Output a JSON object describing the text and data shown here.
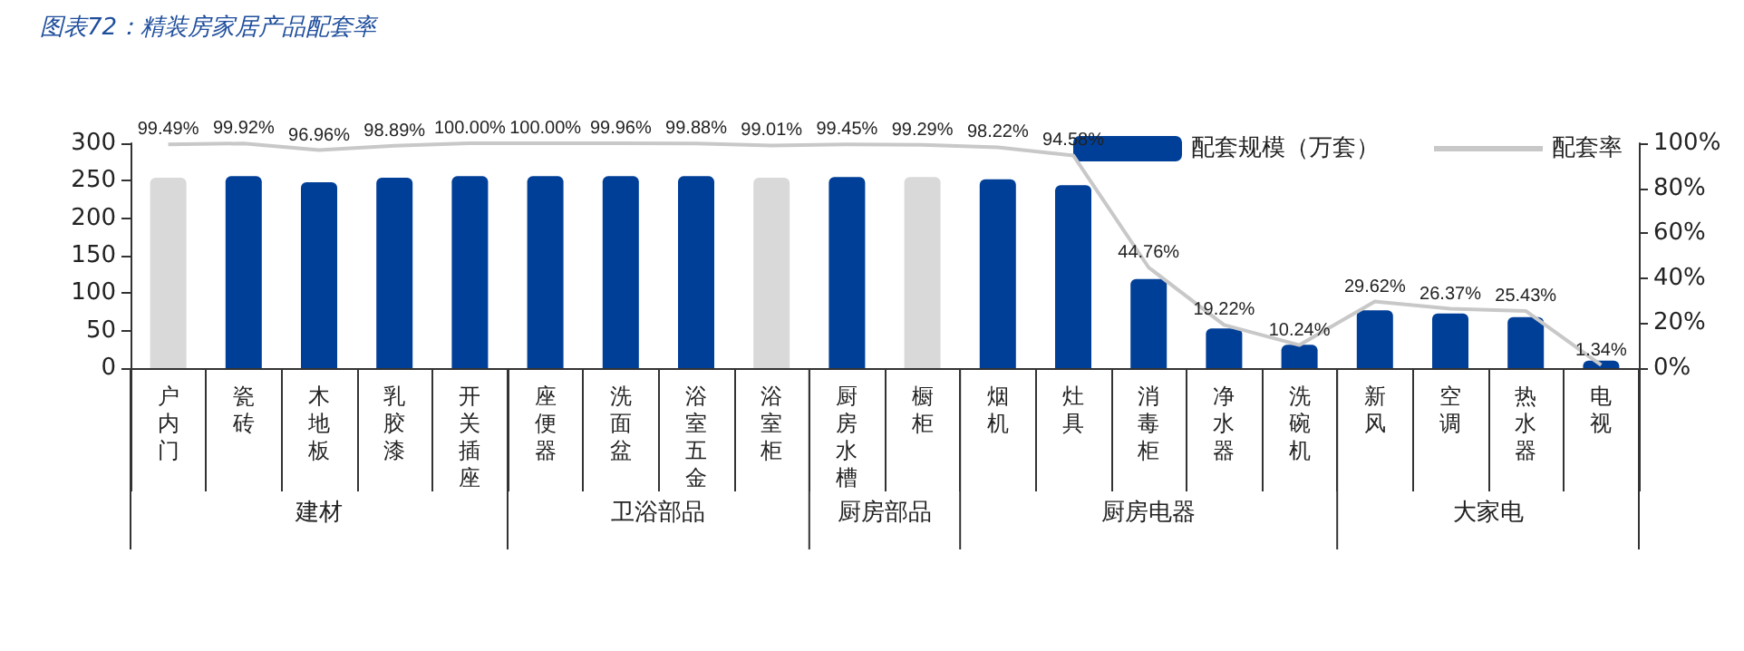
{
  "chart_data": {
    "type": "bar",
    "title": "图表72：精装房家居产品配套率",
    "categories": [
      "户内门",
      "瓷砖",
      "木地板",
      "乳胶漆",
      "开关插座",
      "座便器",
      "洗面盆",
      "浴室五金",
      "浴室柜",
      "厨房水槽",
      "橱柜",
      "烟机",
      "灶具",
      "消毒柜",
      "净水器",
      "洗碗机",
      "新风",
      "空调",
      "热水器",
      "电视"
    ],
    "series": [
      {
        "name": "配套规模（万套）",
        "color": "#003f98",
        "colors": [
          "#d9d9d9",
          "#003f98",
          "#003f98",
          "#003f98",
          "#003f98",
          "#003f98",
          "#003f98",
          "#003f98",
          "#d9d9d9",
          "#003f98",
          "#d9d9d9",
          "#003f98",
          "#003f98",
          "#003f98",
          "#003f98",
          "#003f98",
          "#003f98",
          "#003f98",
          "#003f98",
          "#003f98"
        ],
        "values": [
          254,
          256,
          248,
          254,
          256,
          256,
          256,
          256,
          254,
          255,
          255,
          252,
          244,
          119,
          53,
          31,
          77,
          73,
          68,
          10
        ]
      },
      {
        "name": "配套率",
        "type": "line",
        "axis": "y2",
        "color": "#c8c8c8",
        "values": [
          99.49,
          99.92,
          96.96,
          98.89,
          100,
          100,
          99.96,
          99.88,
          99.01,
          99.45,
          99.29,
          98.22,
          94.58,
          44.76,
          19.22,
          10.24,
          29.62,
          26.37,
          25.43,
          1.34
        ],
        "value_labels": [
          "99.49%",
          "99.92%",
          "96.96%",
          "98.89%",
          "100.00%",
          "100.00%",
          "99.96%",
          "99.88%",
          "99.01%",
          "99.45%",
          "99.29%",
          "98.22%",
          "94.58%",
          "44.76%",
          "19.22%",
          "10.24%",
          "29.62%",
          "26.37%",
          "25.43%",
          "1.34%"
        ]
      }
    ],
    "ylim": [
      0,
      300
    ],
    "yticks": [
      0,
      50,
      100,
      150,
      200,
      250,
      300
    ],
    "y2lim": [
      0,
      100
    ],
    "y2ticks": [
      {
        "value": 0,
        "label": "0%"
      },
      {
        "value": 20,
        "label": "20%"
      },
      {
        "value": 40,
        "label": "40%"
      },
      {
        "value": 60,
        "label": "60%"
      },
      {
        "value": 80,
        "label": "80%"
      },
      {
        "value": 100,
        "label": "100%"
      }
    ],
    "annotations": [
      "建材",
      "卫浴部品",
      "厨房部品",
      "厨房电器",
      "大家电"
    ],
    "legend": "top right",
    "marker": "none",
    "grid": false
  }
}
